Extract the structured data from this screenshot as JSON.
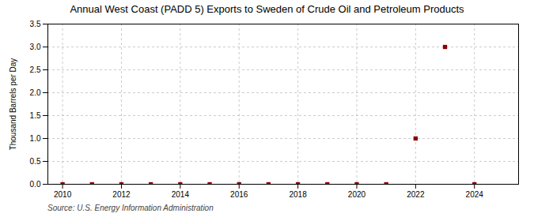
{
  "chart_data": {
    "type": "scatter",
    "title": "Annual West Coast (PADD 5) Exports to Sweden of Crude Oil and Petroleum Products",
    "ylabel": "Thousand Barrels per Day",
    "annotations": [
      "Source: U.S. Energy Information Administration"
    ],
    "x": [
      2010,
      2011,
      2012,
      2013,
      2014,
      2015,
      2016,
      2017,
      2018,
      2019,
      2020,
      2021,
      2022,
      2023,
      2024
    ],
    "values": [
      0.0,
      0.0,
      0.0,
      0.0,
      0.0,
      0.0,
      0.0,
      0.0,
      0.0,
      0.0,
      0.0,
      0.0,
      1.0,
      3.0,
      0.0
    ],
    "color": "#8b0000",
    "marker": "square",
    "xlim": [
      2009.5,
      2025.5
    ],
    "xticks": [
      2010,
      2012,
      2014,
      2016,
      2018,
      2020,
      2022,
      2024
    ],
    "ylim": [
      0.0,
      3.5
    ],
    "yticks": [
      {
        "value": 0,
        "label": "0.0"
      },
      0.5,
      {
        "value": 1,
        "label": "1.0"
      },
      1.5,
      {
        "value": 2,
        "label": "2.0"
      },
      2.5,
      {
        "value": 3,
        "label": "3.0"
      },
      3.5
    ],
    "grid": true
  }
}
